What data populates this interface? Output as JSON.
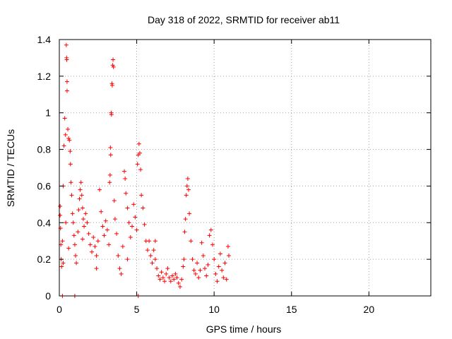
{
  "chart_data": {
    "type": "scatter",
    "title": "Day 318 of 2022, SRMTID for receiver ab11",
    "xlabel": "GPS time / hours",
    "ylabel": "SRMTID / TECUs",
    "xlim": [
      0,
      24
    ],
    "ylim": [
      0,
      1.4
    ],
    "x_ticks": [
      0,
      5,
      10,
      15,
      20
    ],
    "y_ticks": [
      0,
      0.2,
      0.4,
      0.6,
      0.8,
      1,
      1.2,
      1.4
    ],
    "y_tick_labels": [
      "0",
      "0.2",
      "0.4",
      "0.6",
      "0.8",
      "1",
      "1.2",
      "1.4"
    ],
    "grid": true,
    "marker": "+",
    "color": "#ff0000",
    "series": [
      {
        "name": "SRMTID",
        "points": [
          [
            0.05,
            0.49
          ],
          [
            0.05,
            0.44
          ],
          [
            0.08,
            0.37
          ],
          [
            0.1,
            0.28
          ],
          [
            0.12,
            0.2
          ],
          [
            0.15,
            0.16
          ],
          [
            0.2,
            0.3
          ],
          [
            0.25,
            0.6
          ],
          [
            0.3,
            0.82
          ],
          [
            0.35,
            0.97
          ],
          [
            0.4,
            0.88
          ],
          [
            0.42,
            0.4
          ],
          [
            0.45,
            1.37
          ],
          [
            0.47,
            1.3
          ],
          [
            0.48,
            1.29
          ],
          [
            0.5,
            1.17
          ],
          [
            0.5,
            1.12
          ],
          [
            0.55,
            0.91
          ],
          [
            0.6,
            0.86
          ],
          [
            0.65,
            0.85
          ],
          [
            0.7,
            0.79
          ],
          [
            0.72,
            0.72
          ],
          [
            0.75,
            0.62
          ],
          [
            0.8,
            0.55
          ],
          [
            0.85,
            0.45
          ],
          [
            0.9,
            0.4
          ],
          [
            0.95,
            0.33
          ],
          [
            1.0,
            0.28
          ],
          [
            1.05,
            0.22
          ],
          [
            1.1,
            0.18
          ],
          [
            1.2,
            0.35
          ],
          [
            1.25,
            0.47
          ],
          [
            1.3,
            0.53
          ],
          [
            1.35,
            0.58
          ],
          [
            1.4,
            0.62
          ],
          [
            1.45,
            0.55
          ],
          [
            1.5,
            0.48
          ],
          [
            1.55,
            0.42
          ],
          [
            1.6,
            0.38
          ],
          [
            1.7,
            0.45
          ],
          [
            1.8,
            0.4
          ],
          [
            1.9,
            0.34
          ],
          [
            2.0,
            0.28
          ],
          [
            2.1,
            0.24
          ],
          [
            2.2,
            0.32
          ],
          [
            2.3,
            0.27
          ],
          [
            2.4,
            0.22
          ],
          [
            2.5,
            0.3
          ],
          [
            2.6,
            0.58
          ],
          [
            2.7,
            0.46
          ],
          [
            2.8,
            0.38
          ],
          [
            2.9,
            0.33
          ],
          [
            3.0,
            0.41
          ],
          [
            3.1,
            0.36
          ],
          [
            3.2,
            0.28
          ],
          [
            3.25,
            0.62
          ],
          [
            3.28,
            0.66
          ],
          [
            3.3,
            0.81
          ],
          [
            3.32,
            0.77
          ],
          [
            3.35,
            1.0
          ],
          [
            3.37,
            0.99
          ],
          [
            3.4,
            1.16
          ],
          [
            3.42,
            1.15
          ],
          [
            3.45,
            1.26
          ],
          [
            3.47,
            1.29
          ],
          [
            3.5,
            1.25
          ],
          [
            3.55,
            0.52
          ],
          [
            3.6,
            0.42
          ],
          [
            3.7,
            0.34
          ],
          [
            3.8,
            0.22
          ],
          [
            3.9,
            0.15
          ],
          [
            4.0,
            0.12
          ],
          [
            4.1,
            0.27
          ],
          [
            4.2,
            0.68
          ],
          [
            4.25,
            0.64
          ],
          [
            4.3,
            0.56
          ],
          [
            4.4,
            0.48
          ],
          [
            4.5,
            0.4
          ],
          [
            4.6,
            0.32
          ],
          [
            4.7,
            0.38
          ],
          [
            4.8,
            0.5
          ],
          [
            4.9,
            0.43
          ],
          [
            5.0,
            0.36
          ],
          [
            5.05,
            0.72
          ],
          [
            5.1,
            0.77
          ],
          [
            5.15,
            0.83
          ],
          [
            5.2,
            0.78
          ],
          [
            5.25,
            0.69
          ],
          [
            5.3,
            0.55
          ],
          [
            5.4,
            0.48
          ],
          [
            5.5,
            0.39
          ],
          [
            5.6,
            0.3
          ],
          [
            5.7,
            0.25
          ],
          [
            5.8,
            0.3
          ],
          [
            5.9,
            0.22
          ],
          [
            6.0,
            0.18
          ],
          [
            6.1,
            0.25
          ],
          [
            6.2,
            0.2
          ],
          [
            6.3,
            0.15
          ],
          [
            6.4,
            0.11
          ],
          [
            6.5,
            0.09
          ],
          [
            6.6,
            0.13
          ],
          [
            6.7,
            0.1
          ],
          [
            6.8,
            0.08
          ],
          [
            6.9,
            0.12
          ],
          [
            7.0,
            0.15
          ],
          [
            7.1,
            0.1
          ],
          [
            7.2,
            0.08
          ],
          [
            7.3,
            0.11
          ],
          [
            7.4,
            0.09
          ],
          [
            7.5,
            0.12
          ],
          [
            7.6,
            0.1
          ],
          [
            7.7,
            0.07
          ],
          [
            7.8,
            0.05
          ],
          [
            7.9,
            0.09
          ],
          [
            8.0,
            0.16
          ],
          [
            8.05,
            0.2
          ],
          [
            8.1,
            0.35
          ],
          [
            8.15,
            0.42
          ],
          [
            8.2,
            0.55
          ],
          [
            8.25,
            0.6
          ],
          [
            8.3,
            0.64
          ],
          [
            8.35,
            0.58
          ],
          [
            8.4,
            0.45
          ],
          [
            8.5,
            0.3
          ],
          [
            8.6,
            0.2
          ],
          [
            8.7,
            0.14
          ],
          [
            8.8,
            0.12
          ],
          [
            8.9,
            0.18
          ],
          [
            9.0,
            0.1
          ],
          [
            9.1,
            0.14
          ],
          [
            9.2,
            0.29
          ],
          [
            9.3,
            0.22
          ],
          [
            9.4,
            0.15
          ],
          [
            9.5,
            0.11
          ],
          [
            9.6,
            0.17
          ],
          [
            9.7,
            0.33
          ],
          [
            9.8,
            0.36
          ],
          [
            9.9,
            0.28
          ],
          [
            10.0,
            0.2
          ],
          [
            10.1,
            0.12
          ],
          [
            10.2,
            0.08
          ],
          [
            10.3,
            0.16
          ],
          [
            10.4,
            0.23
          ],
          [
            10.5,
            0.14
          ],
          [
            10.6,
            0.1
          ],
          [
            10.7,
            0.18
          ],
          [
            10.8,
            0.09
          ],
          [
            10.9,
            0.27
          ],
          [
            10.95,
            0.22
          ],
          [
            0.2,
            0.0
          ],
          [
            1.0,
            0.0
          ],
          [
            5.1,
            0.0
          ],
          [
            0.25,
            0.18
          ],
          [
            0.6,
            0.26
          ],
          [
            1.5,
            0.31
          ],
          [
            2.4,
            0.15
          ],
          [
            4.4,
            0.2
          ],
          [
            6.2,
            0.3
          ]
        ]
      }
    ]
  }
}
